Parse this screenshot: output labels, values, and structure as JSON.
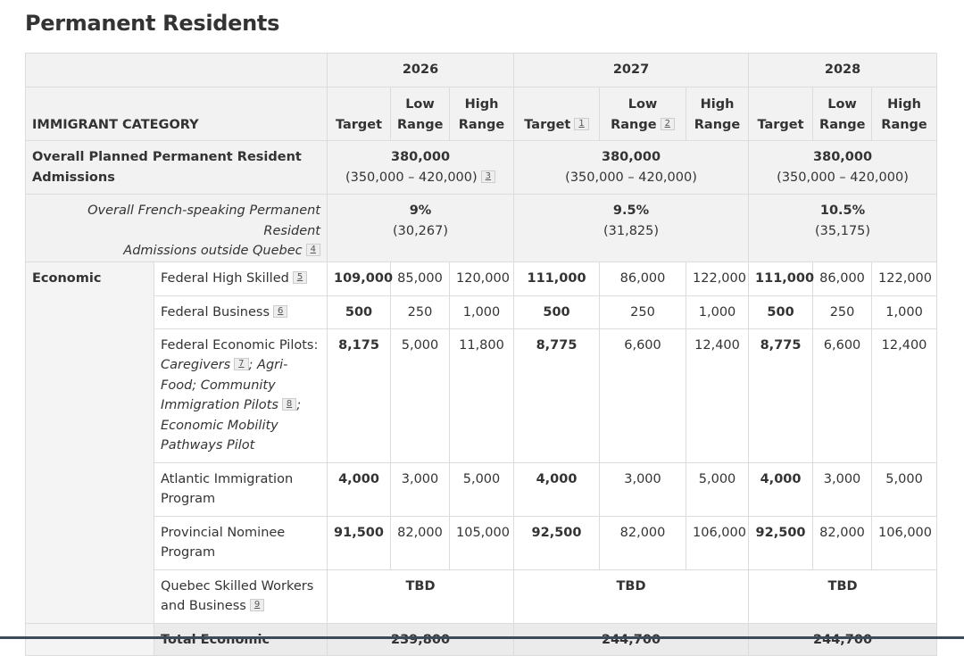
{
  "title": "Permanent Residents",
  "header": {
    "years": [
      "2026",
      "2027",
      "2028"
    ],
    "category_label": "IMMIGRANT CATEGORY",
    "target": "Target",
    "low": "Low Range",
    "high": "High Range",
    "fn_target_2027": "1",
    "fn_low_2027": "2"
  },
  "overall": {
    "label": "Overall Planned Permanent Resident Admissions",
    "fn": "3",
    "values": [
      {
        "target": "380,000",
        "range": "(350,000 – 420,000)"
      },
      {
        "target": "380,000",
        "range": "(350,000 – 420,000)"
      },
      {
        "target": "380,000",
        "range": "(350,000 – 420,000)"
      }
    ]
  },
  "french": {
    "label_1": "Overall French-speaking Permanent Resident",
    "label_2": "Admissions outside Quebec",
    "fn": "4",
    "values": [
      {
        "pct": "9%",
        "count": "(30,267)"
      },
      {
        "pct": "9.5%",
        "count": "(31,825)"
      },
      {
        "pct": "10.5%",
        "count": "(35,175)"
      }
    ]
  },
  "economic": {
    "label": "Economic",
    "rows": [
      {
        "label": "Federal High Skilled",
        "fn": "5",
        "v": [
          "109,000",
          "85,000",
          "120,000",
          "111,000",
          "86,000",
          "122,000",
          "111,000",
          "86,000",
          "122,000"
        ]
      },
      {
        "label": "Federal Business",
        "fn": "6",
        "v": [
          "500",
          "250",
          "1,000",
          "500",
          "250",
          "1,000",
          "500",
          "250",
          "1,000"
        ]
      },
      {
        "label": "Federal Economic Pilots:",
        "it1": "Caregivers",
        "fn1": "7",
        "it2": "; Agri-Food; Community Immigration Pilots",
        "fn2": "8",
        "it3": "; Economic Mobility Pathways Pilot",
        "v": [
          "8,175",
          "5,000",
          "11,800",
          "8,775",
          "6,600",
          "12,400",
          "8,775",
          "6,600",
          "12,400"
        ]
      },
      {
        "label": "Atlantic Immigration Program",
        "v": [
          "4,000",
          "3,000",
          "5,000",
          "4,000",
          "3,000",
          "5,000",
          "4,000",
          "3,000",
          "5,000"
        ]
      },
      {
        "label": "Provincial Nominee Program",
        "v": [
          "91,500",
          "82,000",
          "105,000",
          "92,500",
          "82,000",
          "106,000",
          "92,500",
          "82,000",
          "106,000"
        ]
      },
      {
        "label": "Quebec Skilled Workers and Business",
        "fn": "9",
        "v": [
          "TBD",
          "TBD",
          "TBD"
        ]
      }
    ],
    "total_label": "Total Economic",
    "totals": [
      "239,800",
      "244,700",
      "244,700"
    ]
  }
}
